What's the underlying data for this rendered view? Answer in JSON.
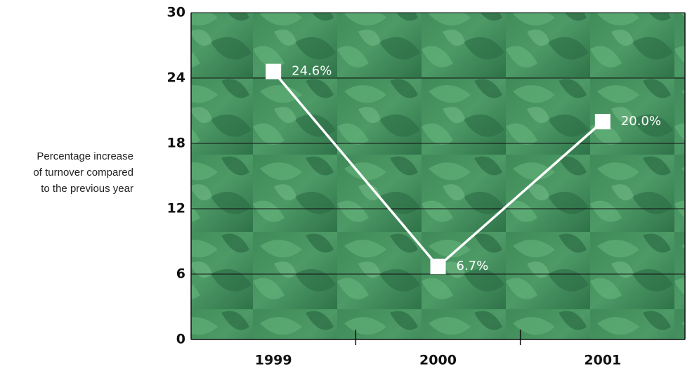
{
  "chart_data": {
    "type": "line",
    "y_label": [
      "Percentage increase",
      "of turnover compared",
      "to the previous year"
    ],
    "categories": [
      "1999",
      "2000",
      "2001"
    ],
    "values": [
      24.6,
      6.7,
      20.0
    ],
    "value_labels": [
      "24.6%",
      "6.7%",
      "20.0%"
    ],
    "color": "#ffffff",
    "ylim": [
      0,
      30
    ],
    "yticks": [
      0,
      6,
      12,
      18,
      24,
      30
    ],
    "grid": true
  }
}
